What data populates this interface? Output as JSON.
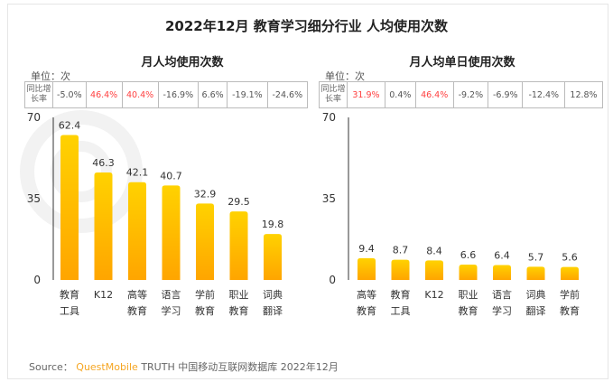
{
  "title": "2022年12月 教育学习细分行业 人均使用次数",
  "watermark": "QUEST MOBILE",
  "source": {
    "label": "Source：",
    "brand": "QuestMobile",
    "text": "TRUTH 中国移动互联网数据库 2022年12月"
  },
  "colors": {
    "bar_top": "#FFD200",
    "bar_bottom": "#FFA500",
    "negative_growth": "#555555",
    "positive_growth": "#FF4040"
  },
  "chart_data": [
    {
      "type": "bar",
      "title": "月人均使用次数",
      "unit": "单位：次",
      "growth_header": "同比增长率",
      "categories": [
        "教育\n工具",
        "K12",
        "高等\n教育",
        "语言\n学习",
        "学前\n教育",
        "职业\n教育",
        "词典\n翻译"
      ],
      "values": [
        62.4,
        46.3,
        42.1,
        40.7,
        32.9,
        29.5,
        19.8
      ],
      "value_labels": [
        "62.4",
        "46.3",
        "42.1",
        "40.7",
        "32.9",
        "29.5",
        "19.8"
      ],
      "growth": [
        "-5.0%",
        "46.4%",
        "40.4%",
        "-16.9%",
        "6.6%",
        "-19.1%",
        "-24.6%"
      ],
      "growth_highlight": [
        false,
        true,
        true,
        false,
        false,
        false,
        false
      ],
      "ylim": [
        0,
        70
      ],
      "yticks": [
        "0",
        "35",
        "70"
      ],
      "grid": false
    },
    {
      "type": "bar",
      "title": "月人均单日使用次数",
      "unit": "单位：次",
      "growth_header": "同比增长率",
      "categories": [
        "高等\n教育",
        "教育\n工具",
        "K12",
        "职业\n教育",
        "语言\n学习",
        "词典\n翻译",
        "学前\n教育"
      ],
      "values": [
        9.4,
        8.7,
        8.4,
        6.6,
        6.4,
        5.7,
        5.6
      ],
      "value_labels": [
        "9.4",
        "8.7",
        "8.4",
        "6.6",
        "6.4",
        "5.7",
        "5.6"
      ],
      "growth": [
        "31.9%",
        "0.4%",
        "46.4%",
        "-9.2%",
        "-6.9%",
        "-12.4%",
        "12.8%"
      ],
      "growth_highlight": [
        true,
        false,
        true,
        false,
        false,
        false,
        false
      ],
      "ylim": [
        0,
        70
      ],
      "yticks": [
        "0",
        "35",
        "70"
      ],
      "grid": false
    }
  ]
}
